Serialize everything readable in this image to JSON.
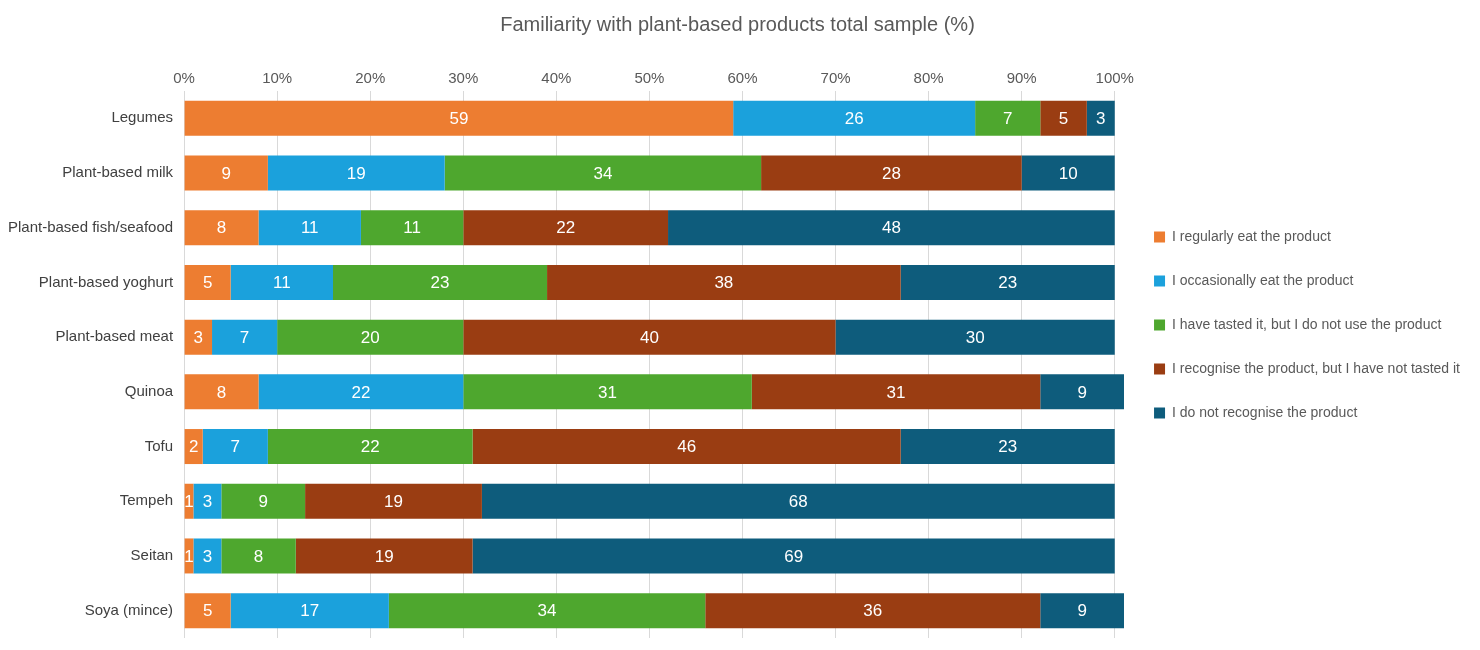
{
  "chart_data": {
    "type": "bar",
    "orientation": "horizontal",
    "stacked": true,
    "title": "Familiarity with plant-based products total sample (%)",
    "categories": [
      "Legumes",
      "Plant-based milk",
      "Plant-based fish/seafood",
      "Plant-based yoghurt",
      "Plant-based meat",
      "Quinoa",
      "Tofu",
      "Tempeh",
      "Seitan",
      "Soya (mince)"
    ],
    "series": [
      {
        "name": "I regularly eat the product",
        "color": "#ed7d31",
        "values": [
          59,
          9,
          8,
          5,
          3,
          8,
          2,
          1,
          1,
          5
        ]
      },
      {
        "name": "I occasionally eat the product",
        "color": "#1ba1dc",
        "values": [
          26,
          19,
          11,
          11,
          7,
          22,
          7,
          3,
          3,
          17
        ]
      },
      {
        "name": "I have tasted it, but I do not use the product",
        "color": "#4ea72e",
        "values": [
          7,
          34,
          11,
          23,
          20,
          31,
          22,
          9,
          8,
          34
        ]
      },
      {
        "name": "I recognise the product, but I have not tasted it",
        "color": "#9a3d12",
        "values": [
          5,
          28,
          22,
          38,
          40,
          31,
          46,
          19,
          19,
          36
        ]
      },
      {
        "name": "I do not recognise the product",
        "color": "#0e5c7c",
        "values": [
          3,
          10,
          48,
          23,
          30,
          9,
          23,
          68,
          69,
          9
        ]
      }
    ],
    "xlim": [
      0,
      101
    ],
    "xticks": [
      {
        "value": 0,
        "label": "0%"
      },
      {
        "value": 10,
        "label": "10%"
      },
      {
        "value": 20,
        "label": "20%"
      },
      {
        "value": 30,
        "label": "30%"
      },
      {
        "value": 40,
        "label": "40%"
      },
      {
        "value": 50,
        "label": "50%"
      },
      {
        "value": 60,
        "label": "60%"
      },
      {
        "value": 70,
        "label": "70%"
      },
      {
        "value": 80,
        "label": "80%"
      },
      {
        "value": 90,
        "label": "90%"
      },
      {
        "value": 100,
        "label": "100%"
      }
    ],
    "grid": "x",
    "legend": "right",
    "data_labels": true
  }
}
